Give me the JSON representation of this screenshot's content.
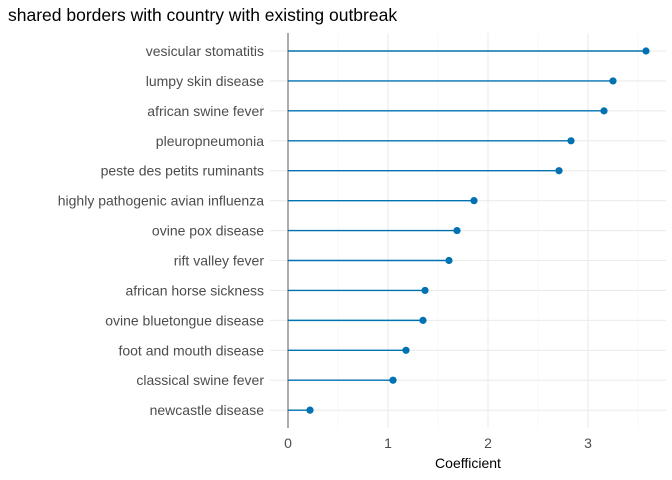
{
  "chart_data": {
    "type": "lollipop",
    "title": "shared borders with country with existing outbreak",
    "xlabel": "Coefficient",
    "ylabel": "",
    "xlim": [
      0,
      3.7
    ],
    "x_ticks": [
      0,
      1,
      2,
      3
    ],
    "grid": true,
    "legend": "none",
    "color": "#0072B2",
    "categories": [
      "vesicular stomatitis",
      "lumpy skin disease",
      "african swine fever",
      "pleuropneumonia",
      "peste des petits ruminants",
      "highly pathogenic avian influenza",
      "ovine pox disease",
      "rift valley fever",
      "african horse sickness",
      "ovine bluetongue disease",
      "foot and mouth disease",
      "classical swine fever",
      "newcastle disease"
    ],
    "values": [
      3.58,
      3.25,
      3.16,
      2.83,
      2.71,
      1.86,
      1.69,
      1.61,
      1.37,
      1.35,
      1.18,
      1.05,
      0.22
    ]
  }
}
